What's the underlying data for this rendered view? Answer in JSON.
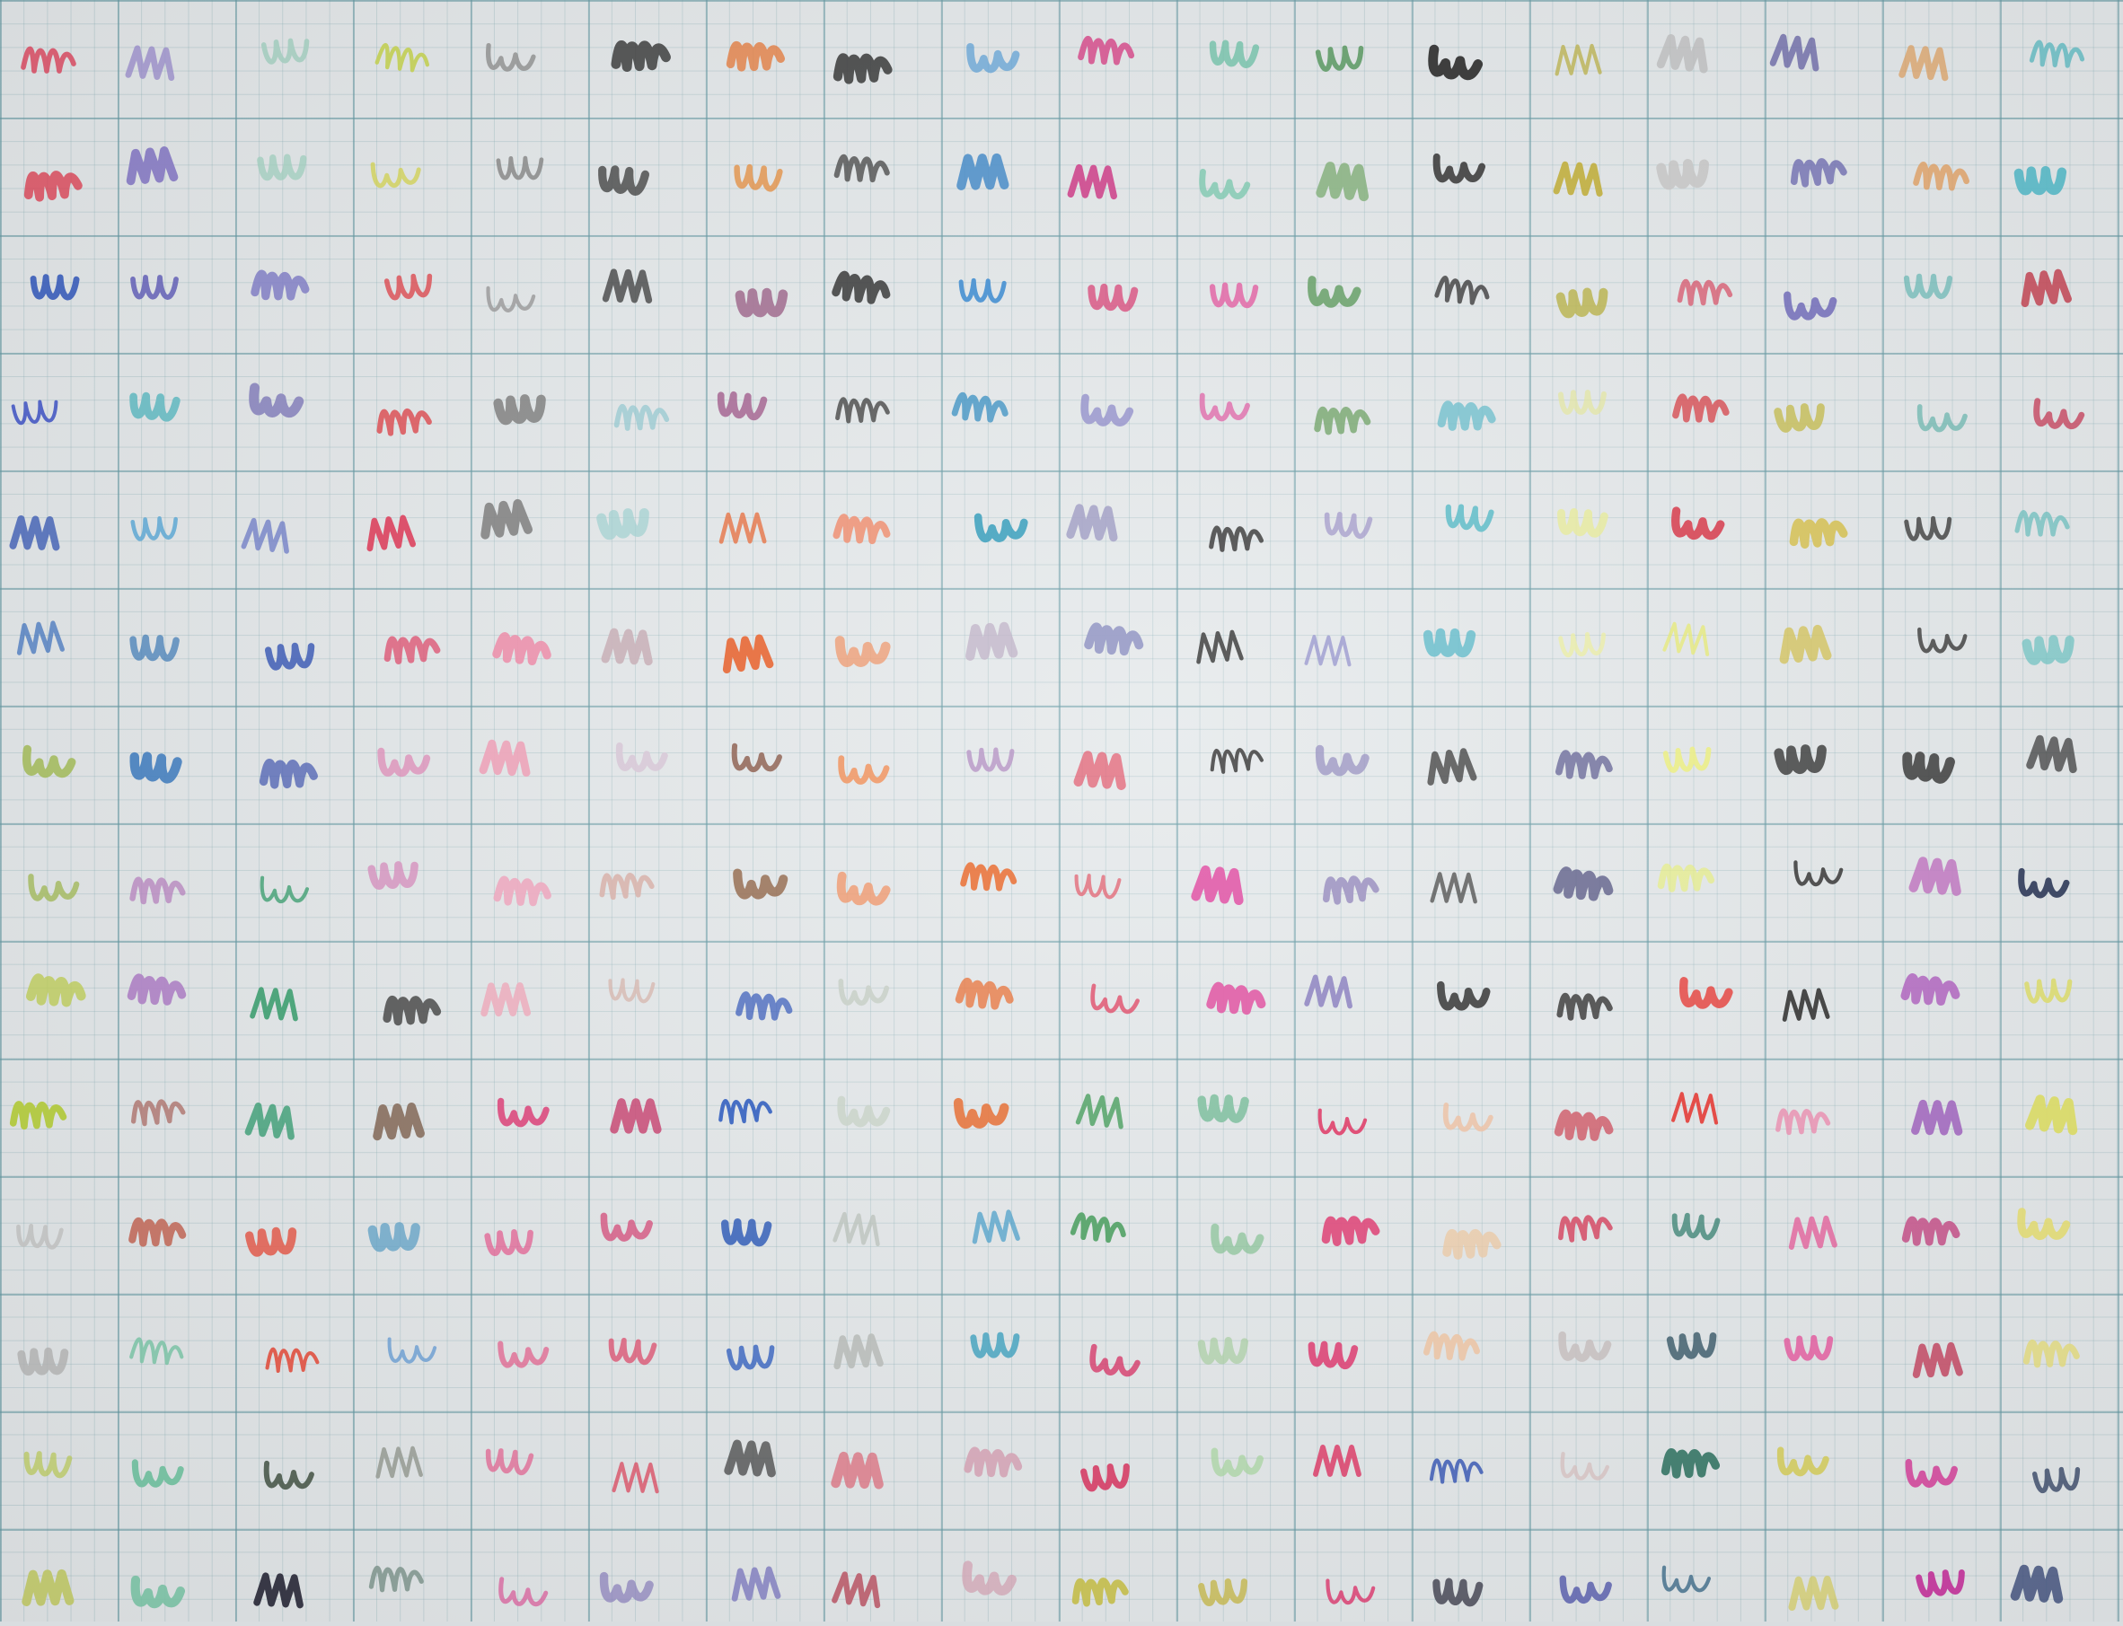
{
  "image": {
    "description_free": true,
    "subject": "graph-paper-color-swatches"
  },
  "grid": {
    "rows": 14,
    "cols": 18,
    "paper_color": "#e4e8ea",
    "major_line_color": "#5f96a0",
    "minor_line_color": "#78a5ac"
  },
  "swatch_rows": [
    [
      "#e0455e",
      "#9c8fd0",
      "#a9d4c6",
      "#c9d65a",
      "#8f8f8f",
      "#303030",
      "#e87a3a",
      "#2a2a2a",
      "#5a9fd8",
      "#d94a8c",
      "#6fc2a8",
      "#5a9a62",
      "#2b2b2b",
      "#bcb34a",
      "#bdbdbd",
      "#5d5aa0",
      "#e0a060",
      "#6cc0c8"
    ],
    [
      "#e0354a",
      "#8a7ec8",
      "#9fd2c0",
      "#d6d64a",
      "#858585",
      "#3a3a3a",
      "#e8842a",
      "#2e2e2e",
      "#3c86c8",
      "#d0408a",
      "#7ccab0",
      "#82b07a",
      "#2c2c2c",
      "#c2b03a",
      "#c8c8c8",
      "#6a68b0",
      "#e49a54",
      "#4eb8c8"
    ],
    [
      "#3e62c0",
      "#5a58b8",
      "#7e7ac8",
      "#e0454a",
      "#9a9a9a",
      "#303030",
      "#a06a8e",
      "#2a2a2a",
      "#3d8dd2",
      "#d8306a",
      "#e45aa0",
      "#5a9a5a",
      "#2e2e2e",
      "#b8b040",
      "#d8405a",
      "#6a64b8",
      "#6cbcb8",
      "#c43a4a"
    ],
    [
      "#3e52c8",
      "#6cc0c8",
      "#8a86c0",
      "#e04a50",
      "#7d7d7d",
      "#8fc8d0",
      "#a05a8a",
      "#262626",
      "#2e8ac0",
      "#8a86c8",
      "#e066a8",
      "#6aa060",
      "#5ab8c8",
      "#e4e89a",
      "#d84048",
      "#c8c05a",
      "#6cb8b0",
      "#c8405a"
    ],
    [
      "#3a5cb8",
      "#5aaad8",
      "#6a7ac8",
      "#e03c5a",
      "#7a7a7a",
      "#9ad0d0",
      "#e8602a",
      "#f08a6a",
      "#2a98b8",
      "#9a96c0",
      "#2e2e2e",
      "#9e94c8",
      "#5abcc8",
      "#e8ec9a",
      "#d8384a",
      "#d8c45a",
      "#303030",
      "#6cc0c0"
    ],
    [
      "#3a70c0",
      "#3a7ab8",
      "#3a5ab8",
      "#e03c60",
      "#f08aa8",
      "#c8b0b8",
      "#e8602a",
      "#f09060",
      "#b8a8c0",
      "#8a8ec0",
      "#2e2e2e",
      "#8a88c8",
      "#5ab8c8",
      "#eef09a",
      "#e8ec6a",
      "#d4c04a",
      "#303030",
      "#6cc4c4"
    ],
    [
      "#a8c060",
      "#3a7ac0",
      "#3a50b0",
      "#e08ab8",
      "#f0a0b8",
      "#d8c8d8",
      "#8a5a4a",
      "#f0905a",
      "#b08ac0",
      "#e04058",
      "#2e2e2e",
      "#8a82b8",
      "#2a2a2a",
      "#6a6a9a",
      "#eef07a",
      "#2a2a2a",
      "#2a2a2a",
      "#2e2e2e"
    ],
    [
      "#a8c060",
      "#b880c0",
      "#3aa070",
      "#d890c0",
      "#f0a8c0",
      "#d8b0a8",
      "#8a5a3a",
      "#f09060",
      "#e8682a",
      "#e05060",
      "#e04aa0",
      "#9a90c0",
      "#2a2a2a",
      "#4a4a7a",
      "#e8f07a",
      "#2e2e2e",
      "#c070c0",
      "#2e3a5a"
    ],
    [
      "#c0d050",
      "#b080c8",
      "#3aa070",
      "#4a4a4a",
      "#f0b0c0",
      "#d8b8b0",
      "#2a50b8",
      "#c8d0c8",
      "#e8682a",
      "#e04060",
      "#e050a0",
      "#8a80c0",
      "#2a2a2a",
      "#3a3a3a",
      "#e8302a",
      "#2e2e2e",
      "#b060c0",
      "#e0e070"
    ],
    [
      "#b8d040",
      "#b0706a",
      "#2a9a6a",
      "#8a7060",
      "#e04a80",
      "#c8386a",
      "#2a5ac0",
      "#c8d4c8",
      "#e8682a",
      "#4aa060",
      "#80c0a0",
      "#e03060",
      "#f0c0a0",
      "#d04a5a",
      "#e8302a",
      "#f080a8",
      "#a060c0",
      "#e0e060"
    ],
    [
      "#c8c8c8",
      "#c87060",
      "#e85a4a",
      "#5aa0c8",
      "#e8508a",
      "#d84a7a",
      "#2a58b8",
      "#b8c0b8",
      "#3a98c8",
      "#4aa060",
      "#80c090",
      "#e03870",
      "#f0c8a0",
      "#d8506a",
      "#2a7a6a",
      "#e85a9a",
      "#c8508a",
      "#e8e070"
    ],
    [
      "#b8b8b8",
      "#7ac8a8",
      "#e85a4a",
      "#6aa0d8",
      "#e85a8a",
      "#e04a6a",
      "#2a5ac0",
      "#b8bcb8",
      "#3aa0c0",
      "#d8205a",
      "#a8d0a0",
      "#e0306a",
      "#f0c8a8",
      "#c8c0c0",
      "#3a5a6a",
      "#e85aa0",
      "#c8506a",
      "#e8e080"
    ],
    [
      "#c0d060",
      "#7ac8a8",
      "#3a4a3a",
      "#9aa098",
      "#e86090",
      "#e0405a",
      "#3a3a3a",
      "#e06a7a",
      "#d8a8b8",
      "#d82050",
      "#a8d8a0",
      "#e03060",
      "#3a5ab8",
      "#d8c0c0",
      "#3a7a6a",
      "#d8d060",
      "#d84aa0",
      "#3a4a6a"
    ],
    [
      "#c8d070",
      "#7ac8a8",
      "#2a2a3a",
      "#8aa098",
      "#e060a0",
      "#8a80c0",
      "#8a88c8",
      "#c05a6a",
      "#d8a8b8",
      "#c8c040",
      "#c8b840",
      "#e0306a",
      "#3a3a4a",
      "#5a60b0",
      "#3a6a8a",
      "#d8d060",
      "#c838a0",
      "#3a4a7a"
    ]
  ]
}
